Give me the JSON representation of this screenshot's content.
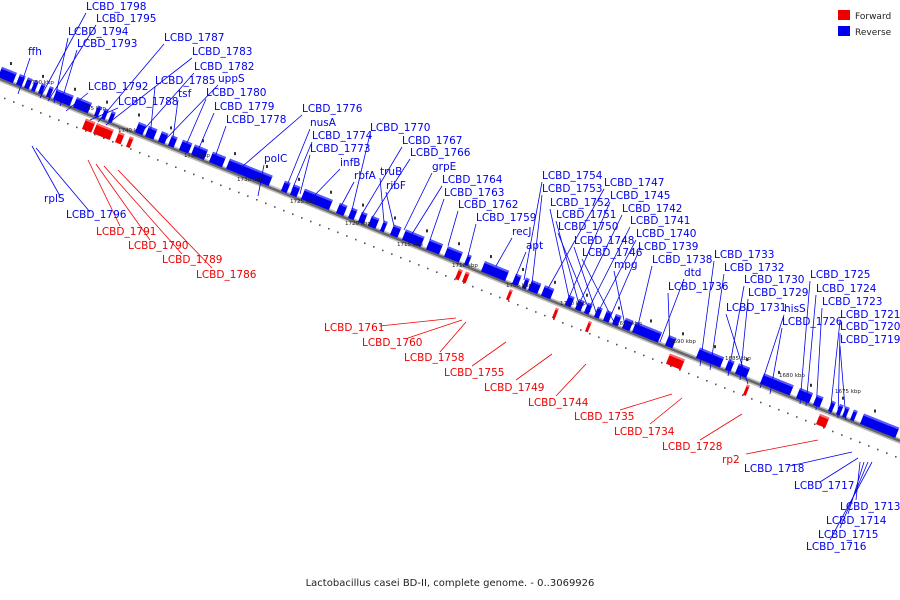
{
  "legend": [
    {
      "label": "Forward",
      "color": "#ee0000"
    },
    {
      "label": "Reverse",
      "color": "#0000ee"
    }
  ],
  "footer": "Lactobacillus casei BD-II, complete genome. - 0..3069926",
  "colors": {
    "forward": "#ee0000",
    "reverse": "#0000ee",
    "backbone": "#666666"
  },
  "scale_labels": [
    "1750 kbp",
    "1745 kbp",
    "1740 kbp",
    "1735 kbp",
    "1730 kbp",
    "1725 kbp",
    "1720 kbp",
    "1715 kbp",
    "1710 kbp",
    "1705 kbp",
    "1700 kbp",
    "1695 kbp",
    "1690 kbp",
    "1685 kbp",
    "1680 kbp",
    "1675 kbp"
  ],
  "reverse_genes": [
    "ffh",
    "LCBD_1798",
    "LCBD_1795",
    "LCBD_1794",
    "LCBD_1793",
    "LCBD_1792",
    "LCBD_1788",
    "LCBD_1787",
    "LCBD_1783",
    "LCBD_1782",
    "LCBD_1785",
    "uppS",
    "tsf",
    "LCBD_1780",
    "LCBD_1779",
    "LCBD_1778",
    "LCBD_1776",
    "nusA",
    "LCBD_1774",
    "LCBD_1773",
    "polC",
    "infB",
    "rbfA",
    "LCBD_1770",
    "LCBD_1767",
    "LCBD_1766",
    "truB",
    "ribF",
    "grpE",
    "LCBD_1764",
    "LCBD_1763",
    "LCBD_1762",
    "LCBD_1759",
    "recJ",
    "apt",
    "LCBD_1754",
    "LCBD_1753",
    "LCBD_1747",
    "LCBD_1745",
    "LCBD_1752",
    "LCBD_1742",
    "LCBD_1751",
    "LCBD_1741",
    "LCBD_1750",
    "LCBD_1740",
    "LCBD_1748",
    "LCBD_1739",
    "LCBD_1746",
    "mpg",
    "LCBD_1738",
    "dtd",
    "LCBD_1736",
    "LCBD_1733",
    "LCBD_1732",
    "LCBD_1730",
    "LCBD_1729",
    "hisS",
    "LCBD_1731",
    "LCBD_1726",
    "LCBD_1725",
    "LCBD_1724",
    "LCBD_1723",
    "LCBD_1721",
    "LCBD_1720",
    "LCBD_1719",
    "rplS",
    "LCBD_1796",
    "LCBD_1718",
    "LCBD_1717",
    "LCBD_1713",
    "LCBD_1714",
    "LCBD_1715",
    "LCBD_1716"
  ],
  "forward_genes": [
    "LCBD_1791",
    "LCBD_1790",
    "LCBD_1789",
    "LCBD_1786",
    "LCBD_1761",
    "LCBD_1760",
    "LCBD_1758",
    "LCBD_1755",
    "LCBD_1749",
    "LCBD_1744",
    "LCBD_1735",
    "LCBD_1734",
    "LCBD_1728",
    "rp2"
  ]
}
